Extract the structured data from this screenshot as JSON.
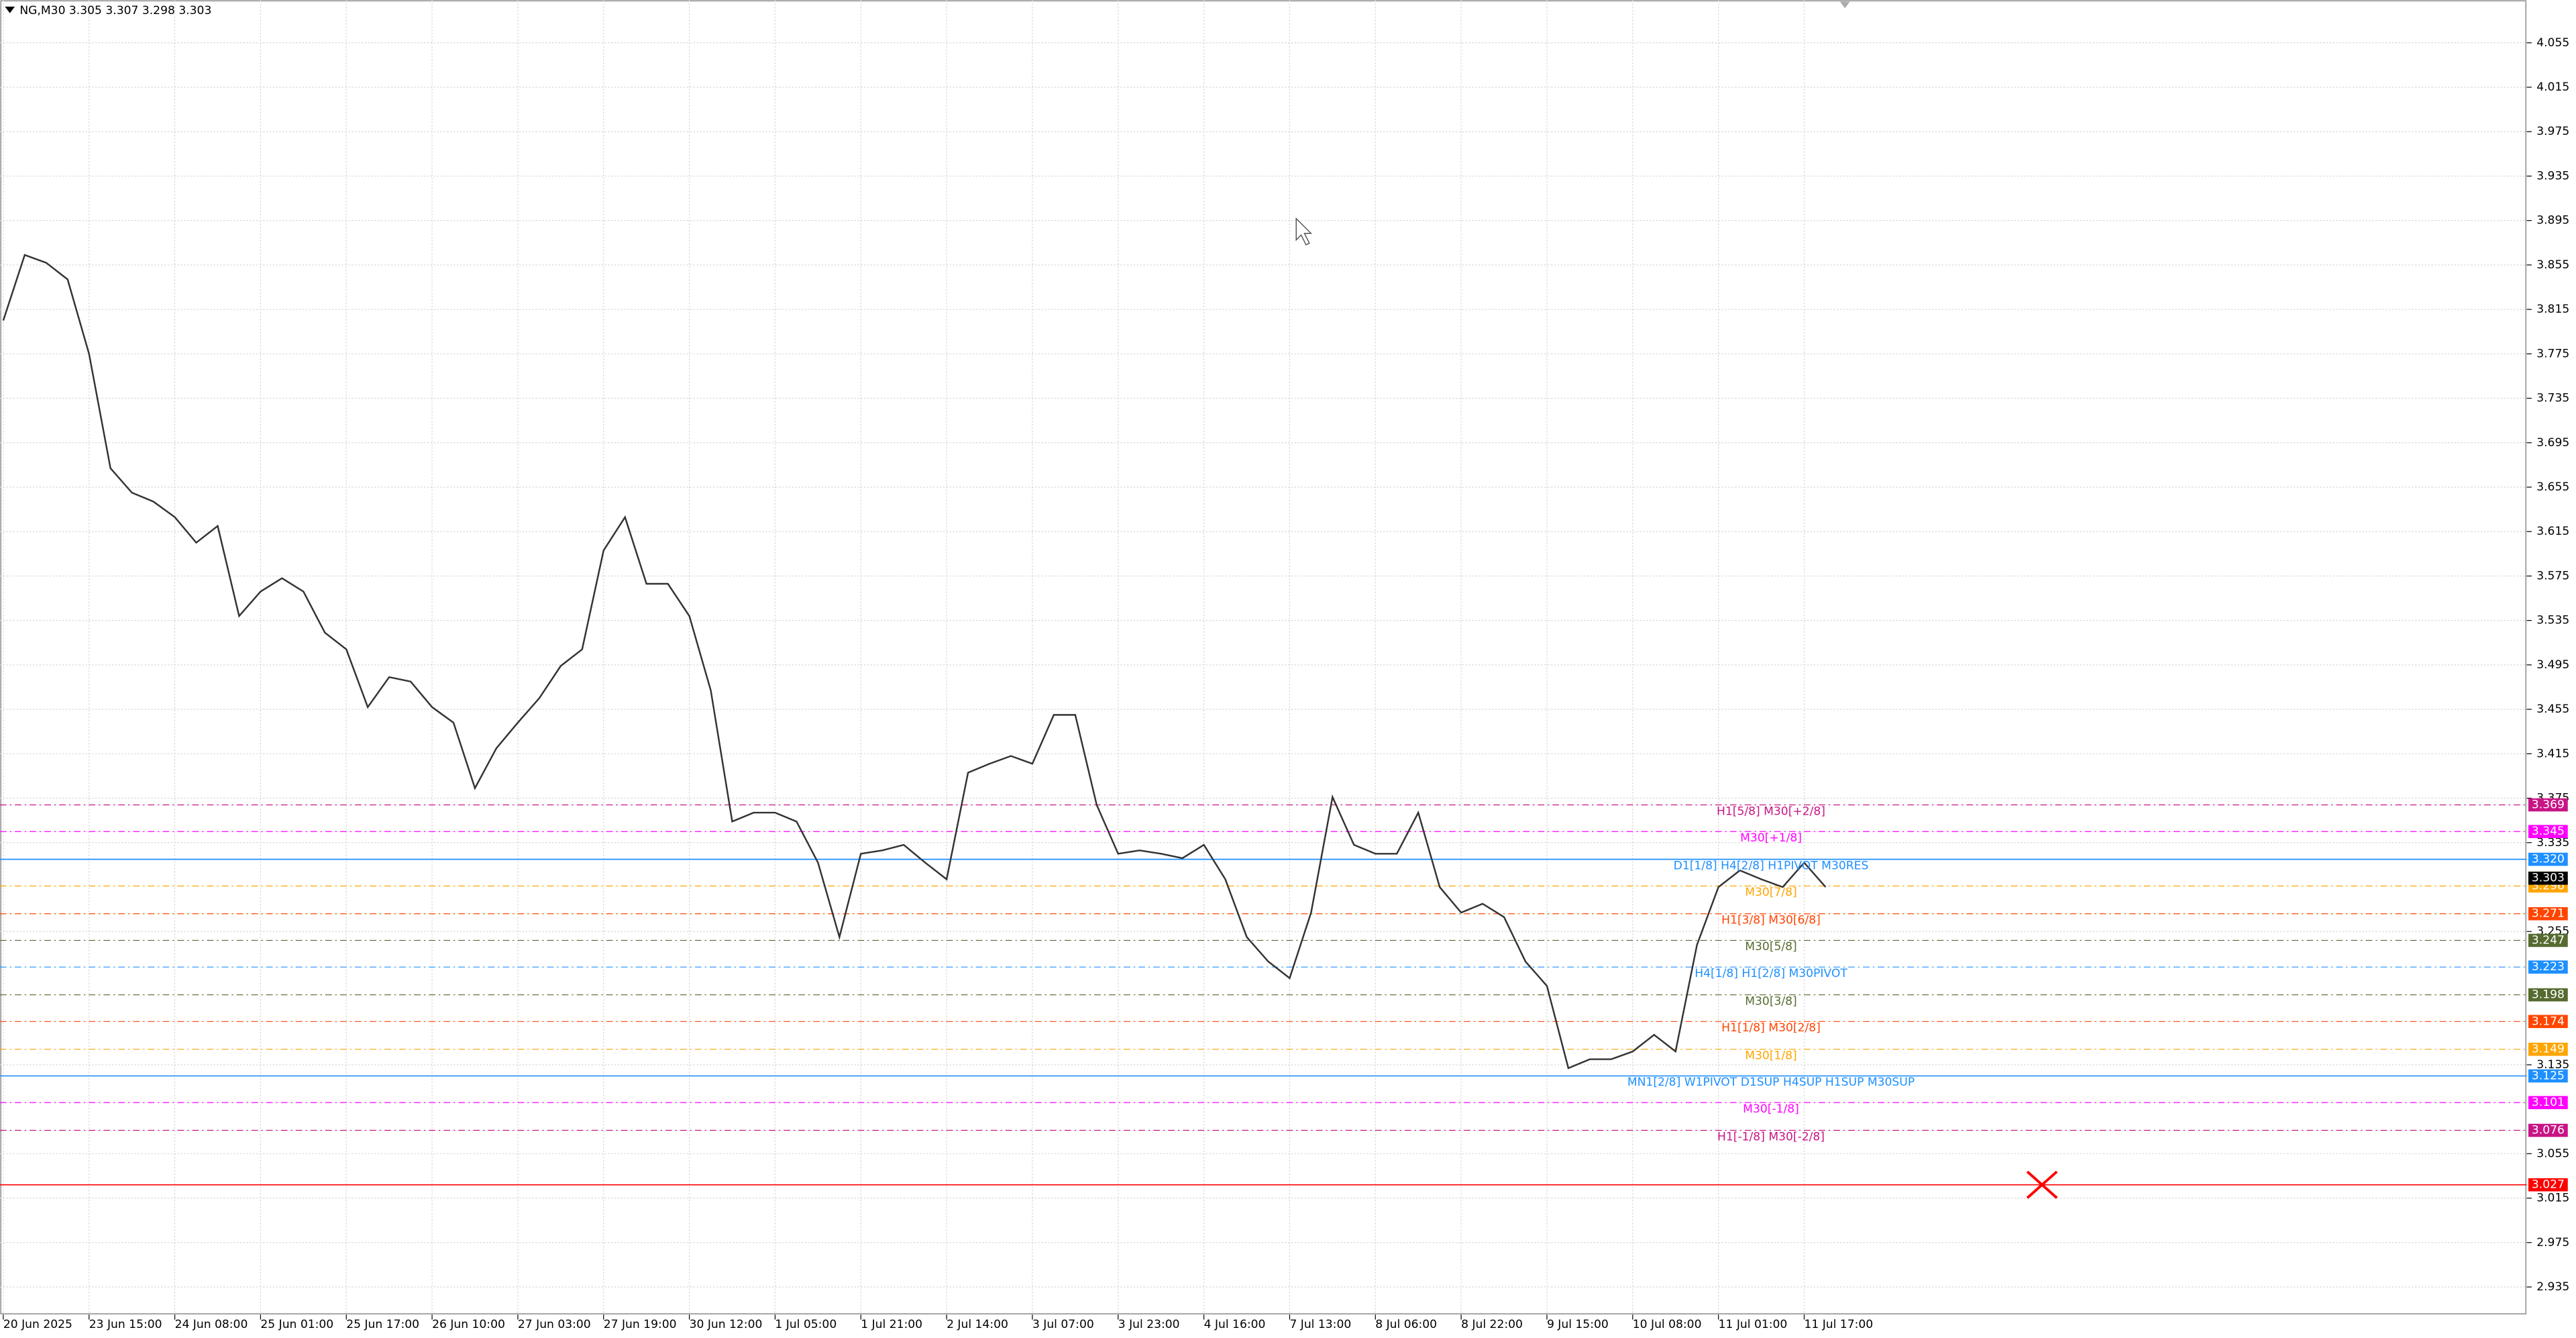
{
  "chart_data": {
    "type": "line",
    "title": "NG,M30  3.305 3.307 3.298 3.303",
    "categories": [
      "20 Jun 2025",
      null,
      null,
      null,
      "23 Jun 15:00",
      null,
      null,
      null,
      "24 Jun 08:00",
      null,
      null,
      null,
      "25 Jun 01:00",
      null,
      null,
      null,
      "25 Jun 17:00",
      null,
      null,
      null,
      "26 Jun 10:00",
      null,
      null,
      null,
      "27 Jun 03:00",
      null,
      null,
      null,
      "27 Jun 19:00",
      null,
      null,
      null,
      "30 Jun 12:00",
      null,
      null,
      null,
      "1 Jul 05:00",
      null,
      null,
      null,
      "1 Jul 21:00",
      null,
      null,
      null,
      "2 Jul 14:00",
      null,
      null,
      null,
      "3 Jul 07:00",
      null,
      null,
      null,
      "3 Jul 23:00",
      null,
      null,
      null,
      "4 Jul 16:00",
      null,
      null,
      null,
      "7 Jul 13:00",
      null,
      null,
      null,
      "8 Jul 06:00",
      null,
      null,
      null,
      "8 Jul 22:00",
      null,
      null,
      null,
      "9 Jul 15:00",
      null,
      null,
      null,
      "10 Jul 08:00",
      null,
      null,
      null,
      "11 Jul 01:00",
      null,
      null,
      null,
      "11 Jul 17:00",
      null
    ],
    "series": [
      {
        "color": "#333333",
        "values": [
          3.805,
          3.864,
          3.857,
          3.842,
          3.775,
          3.672,
          3.65,
          3.642,
          3.628,
          3.605,
          3.62,
          3.539,
          3.561,
          3.573,
          3.561,
          3.524,
          3.509,
          3.457,
          3.484,
          3.48,
          3.457,
          3.443,
          3.384,
          3.42,
          3.443,
          3.465,
          3.494,
          3.509,
          3.598,
          3.628,
          3.568,
          3.568,
          3.539,
          3.472,
          3.354,
          3.362,
          3.362,
          3.354,
          3.317,
          3.25,
          3.325,
          3.328,
          3.333,
          3.317,
          3.302,
          3.398,
          3.406,
          3.413,
          3.406,
          3.45,
          3.45,
          3.369,
          3.325,
          3.328,
          3.325,
          3.321,
          3.333,
          3.302,
          3.25,
          3.228,
          3.213,
          3.272,
          3.376,
          3.333,
          3.325,
          3.325,
          3.362,
          3.295,
          3.272,
          3.28,
          3.268,
          3.228,
          3.206,
          3.132,
          3.14,
          3.14,
          3.147,
          3.162,
          3.147,
          3.243,
          3.295,
          3.31,
          3.302,
          3.295,
          3.317,
          3.295
        ]
      }
    ],
    "ylim": [
      2.9101,
      4.0935
    ],
    "yticks": [
      4.055,
      4.015,
      3.975,
      3.935,
      3.895,
      3.855,
      3.815,
      3.775,
      3.735,
      3.695,
      3.655,
      3.615,
      3.575,
      3.535,
      3.495,
      3.455,
      3.415,
      3.375,
      3.335,
      3.255,
      3.135,
      3.055,
      3.015,
      2.975,
      2.935
    ],
    "grid": true,
    "levels": [
      {
        "value": 3.369,
        "label": "H1[5/8] M30[+2/8]",
        "color": "#c71585",
        "style": "dash"
      },
      {
        "value": 3.345,
        "label": "M30[+1/8]",
        "color": "#ff00ff",
        "style": "dash"
      },
      {
        "value": 3.32,
        "value_label": "3.320",
        "label": "D1[1/8] H4[2/8] H1PIVOT M30RES",
        "color": "#1e90ff",
        "style": "solid"
      },
      {
        "value": 3.296,
        "label": "M30[7/8]",
        "color": "#ffa500",
        "style": "dash"
      },
      {
        "value": 3.271,
        "label": "H1[3/8] M30[6/8]",
        "color": "#ff4500",
        "style": "dash"
      },
      {
        "value": 3.247,
        "label": "M30[5/8]",
        "color": "#556b2f",
        "style": "dash"
      },
      {
        "value": 3.223,
        "label": "H4[1/8] H1[2/8] M30PIVOT",
        "color": "#1e90ff",
        "style": "dash"
      },
      {
        "value": 3.198,
        "label": "M30[3/8]",
        "color": "#556b2f",
        "style": "dash"
      },
      {
        "value": 3.174,
        "label": "H1[1/8] M30[2/8]",
        "color": "#ff4500",
        "style": "dash"
      },
      {
        "value": 3.149,
        "label": "M30[1/8]",
        "color": "#ffa500",
        "style": "dash"
      },
      {
        "value": 3.125,
        "label": "MN1[2/8] W1PIVOT D1SUP H4SUP H1SUP M30SUP",
        "color": "#1e90ff",
        "style": "solid"
      },
      {
        "value": 3.101,
        "label": "M30[-1/8]",
        "color": "#ff00ff",
        "style": "dash"
      },
      {
        "value": 3.076,
        "label": "H1[-1/8] M30[-2/8]",
        "color": "#c71585",
        "style": "dash"
      },
      {
        "value": 3.027,
        "color": "#ff0000",
        "style": "solid"
      }
    ],
    "current_price": {
      "value": 3.303,
      "color": "#000000"
    }
  }
}
